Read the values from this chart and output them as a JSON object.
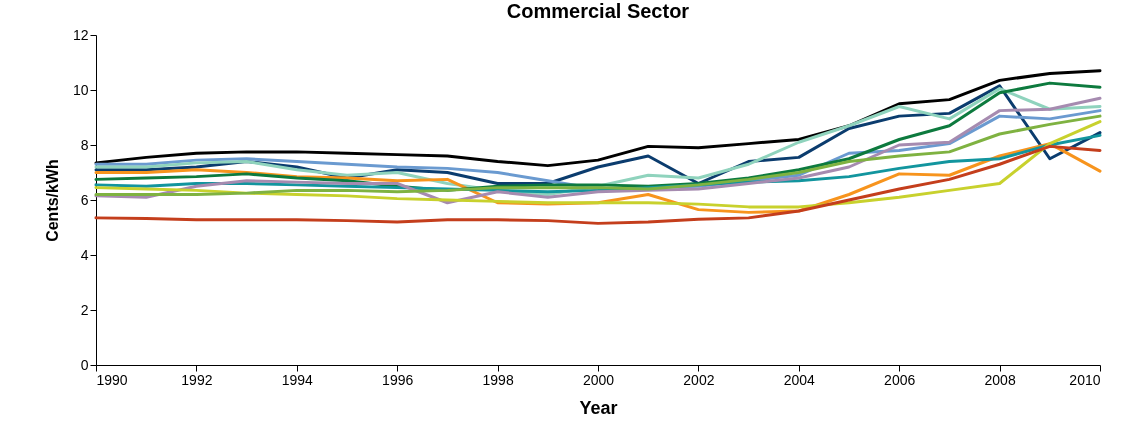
{
  "chart_data": {
    "type": "line",
    "title": "Commercial Sector",
    "xlabel": "Year",
    "ylabel": "Cents/kWh",
    "x": [
      1990,
      1991,
      1992,
      1993,
      1994,
      1995,
      1996,
      1997,
      1998,
      1999,
      2000,
      2001,
      2002,
      2003,
      2004,
      2005,
      2006,
      2007,
      2008,
      2009,
      2010
    ],
    "xlim": [
      1990,
      2010
    ],
    "xticks": [
      1990,
      1992,
      1994,
      1996,
      1998,
      2000,
      2002,
      2004,
      2006,
      2008,
      2010
    ],
    "ylim": [
      0,
      12
    ],
    "yticks": [
      0,
      2,
      4,
      6,
      8,
      10,
      12
    ],
    "grid": false,
    "legend": false,
    "marker": "none",
    "line_style": "solid",
    "series": [
      {
        "color": "#000000",
        "values": [
          7.35,
          7.55,
          7.7,
          7.75,
          7.75,
          7.7,
          7.65,
          7.6,
          7.4,
          7.25,
          7.45,
          7.95,
          7.9,
          8.05,
          8.2,
          8.7,
          9.5,
          9.65,
          10.35,
          10.6,
          10.7
        ]
      },
      {
        "color": "#0b3c6e",
        "values": [
          7.1,
          7.1,
          7.2,
          7.4,
          7.2,
          6.8,
          7.1,
          7.0,
          6.6,
          6.6,
          7.2,
          7.6,
          6.6,
          7.4,
          7.55,
          8.6,
          9.05,
          9.15,
          10.15,
          7.5,
          8.45
        ]
      },
      {
        "color": "#6a9ad0",
        "values": [
          7.3,
          7.3,
          7.45,
          7.5,
          7.4,
          7.3,
          7.2,
          7.15,
          7.0,
          6.7,
          6.4,
          6.45,
          6.5,
          6.7,
          6.9,
          7.7,
          7.8,
          8.05,
          9.05,
          8.95,
          9.25
        ]
      },
      {
        "color": "#8fd3bd",
        "values": [
          7.2,
          7.2,
          7.35,
          7.4,
          7.1,
          6.9,
          7.0,
          6.6,
          6.35,
          6.2,
          6.5,
          6.9,
          6.8,
          7.3,
          8.1,
          8.7,
          9.4,
          8.95,
          10.05,
          9.3,
          9.4
        ]
      },
      {
        "color": "#f7941d",
        "values": [
          7.0,
          7.0,
          7.1,
          7.0,
          6.85,
          6.8,
          6.7,
          6.75,
          5.9,
          5.85,
          5.9,
          6.2,
          5.65,
          5.55,
          5.6,
          6.2,
          6.95,
          6.9,
          7.6,
          8.05,
          7.05
        ]
      },
      {
        "color": "#0d7a3e",
        "values": [
          6.75,
          6.8,
          6.85,
          6.95,
          6.8,
          6.7,
          6.5,
          6.35,
          6.5,
          6.55,
          6.55,
          6.5,
          6.6,
          6.8,
          7.1,
          7.5,
          8.2,
          8.7,
          9.9,
          10.25,
          10.1
        ]
      },
      {
        "color": "#12959e",
        "values": [
          6.55,
          6.5,
          6.6,
          6.6,
          6.55,
          6.5,
          6.45,
          6.4,
          6.35,
          6.3,
          6.35,
          6.45,
          6.55,
          6.65,
          6.7,
          6.85,
          7.15,
          7.4,
          7.5,
          8.0,
          8.35
        ]
      },
      {
        "color": "#a68bb0",
        "values": [
          6.15,
          6.1,
          6.5,
          6.7,
          6.65,
          6.6,
          6.6,
          5.9,
          6.3,
          6.1,
          6.3,
          6.35,
          6.4,
          6.6,
          6.8,
          7.2,
          8.0,
          8.1,
          9.25,
          9.3,
          9.7
        ]
      },
      {
        "color": "#c8d12d",
        "values": [
          6.45,
          6.4,
          6.35,
          6.25,
          6.2,
          6.15,
          6.05,
          6.0,
          5.95,
          5.9,
          5.9,
          5.9,
          5.85,
          5.75,
          5.75,
          5.9,
          6.1,
          6.35,
          6.6,
          8.05,
          8.85
        ]
      },
      {
        "color": "#7fb241",
        "values": [
          6.2,
          6.2,
          6.2,
          6.25,
          6.35,
          6.35,
          6.3,
          6.35,
          6.45,
          6.45,
          6.45,
          6.4,
          6.55,
          6.75,
          7.0,
          7.4,
          7.6,
          7.75,
          8.4,
          8.75,
          9.05
        ]
      },
      {
        "color": "#c43e1c",
        "values": [
          5.35,
          5.33,
          5.28,
          5.28,
          5.28,
          5.25,
          5.2,
          5.28,
          5.28,
          5.25,
          5.15,
          5.2,
          5.3,
          5.35,
          5.6,
          6.0,
          6.4,
          6.75,
          7.3,
          7.95,
          7.8
        ]
      }
    ]
  }
}
